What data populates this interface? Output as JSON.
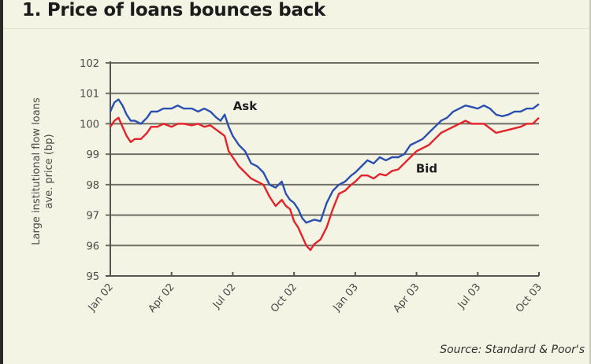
{
  "title": "1. Price of loans bounces back",
  "source": "Source: Standard & Poor's",
  "colors": {
    "background": "#f4f4e4",
    "ask": "#2a4fb0",
    "bid": "#e3222a",
    "grid": "#6e6e66",
    "axis": "#555555"
  },
  "chart_data": {
    "type": "line",
    "title": "1. Price of loans bounces back",
    "xlabel": "",
    "ylabel": "Large institutional flow loans ave. price (bp)",
    "ylabel_lines": [
      "Large institutional flow loans",
      "ave. price (bp)"
    ],
    "ylim": [
      95,
      102
    ],
    "yticks": [
      95,
      96,
      97,
      98,
      99,
      100,
      101,
      102
    ],
    "xticks": [
      "Jan 02",
      "Apr 02",
      "Jul 02",
      "Oct 02",
      "Jan 03",
      "Apr 03",
      "Jul 03",
      "Oct 03"
    ],
    "grid": true,
    "legend": "inline labels",
    "x_unit": "months since Jan 02",
    "series": [
      {
        "name": "Ask",
        "label_pos": [
          6.6,
          100.45
        ],
        "x": [
          0,
          0.2,
          0.4,
          0.6,
          0.8,
          1.0,
          1.2,
          1.5,
          1.8,
          2.0,
          2.3,
          2.6,
          3.0,
          3.3,
          3.6,
          4.0,
          4.3,
          4.6,
          4.9,
          5.2,
          5.4,
          5.6,
          5.8,
          6.0,
          6.3,
          6.6,
          6.9,
          7.2,
          7.5,
          7.8,
          8.1,
          8.4,
          8.6,
          8.8,
          9.0,
          9.2,
          9.4,
          9.6,
          9.8,
          10.0,
          10.3,
          10.6,
          10.9,
          11.2,
          11.5,
          11.8,
          12.0,
          12.3,
          12.6,
          12.9,
          13.2,
          13.5,
          13.8,
          14.1,
          14.4,
          14.7,
          15.0,
          15.3,
          15.6,
          15.9,
          16.2,
          16.5,
          16.8,
          17.1,
          17.4,
          17.7,
          18.0,
          18.3,
          18.6,
          18.9,
          19.2,
          19.5,
          19.8,
          20.1,
          20.4,
          20.7,
          21.0
        ],
        "values": [
          100.4,
          100.7,
          100.8,
          100.6,
          100.3,
          100.1,
          100.1,
          100.0,
          100.2,
          100.4,
          100.4,
          100.5,
          100.5,
          100.6,
          100.5,
          100.5,
          100.4,
          100.5,
          100.4,
          100.2,
          100.1,
          100.3,
          99.9,
          99.6,
          99.3,
          99.1,
          98.7,
          98.6,
          98.4,
          98.0,
          97.9,
          98.1,
          97.7,
          97.5,
          97.4,
          97.2,
          96.9,
          96.75,
          96.8,
          96.85,
          96.8,
          97.4,
          97.8,
          98.0,
          98.1,
          98.3,
          98.4,
          98.6,
          98.8,
          98.7,
          98.9,
          98.8,
          98.9,
          98.9,
          99.0,
          99.3,
          99.4,
          99.5,
          99.7,
          99.9,
          100.1,
          100.2,
          100.4,
          100.5,
          100.6,
          100.55,
          100.5,
          100.6,
          100.5,
          100.3,
          100.25,
          100.3,
          100.4,
          100.4,
          100.5,
          100.5,
          100.65
        ]
      },
      {
        "name": "Bid",
        "label_pos": [
          15.5,
          98.4
        ],
        "x": [
          0,
          0.2,
          0.4,
          0.6,
          0.8,
          1.0,
          1.2,
          1.5,
          1.8,
          2.0,
          2.3,
          2.6,
          3.0,
          3.3,
          3.6,
          4.0,
          4.3,
          4.6,
          4.9,
          5.2,
          5.4,
          5.6,
          5.8,
          6.0,
          6.3,
          6.6,
          6.9,
          7.2,
          7.5,
          7.8,
          8.1,
          8.4,
          8.6,
          8.8,
          9.0,
          9.2,
          9.4,
          9.6,
          9.8,
          10.0,
          10.3,
          10.6,
          10.9,
          11.2,
          11.5,
          11.8,
          12.0,
          12.3,
          12.6,
          12.9,
          13.2,
          13.5,
          13.8,
          14.1,
          14.4,
          14.7,
          15.0,
          15.3,
          15.6,
          15.9,
          16.2,
          16.5,
          16.8,
          17.1,
          17.4,
          17.7,
          18.0,
          18.3,
          18.6,
          18.9,
          19.2,
          19.5,
          19.8,
          20.1,
          20.4,
          20.7,
          21.0
        ],
        "values": [
          99.9,
          100.1,
          100.2,
          99.9,
          99.6,
          99.4,
          99.5,
          99.5,
          99.7,
          99.9,
          99.9,
          100.0,
          99.9,
          100.0,
          100.0,
          99.95,
          100.0,
          99.9,
          99.95,
          99.8,
          99.7,
          99.6,
          99.1,
          98.9,
          98.6,
          98.4,
          98.2,
          98.1,
          98.0,
          97.6,
          97.3,
          97.5,
          97.3,
          97.2,
          96.8,
          96.6,
          96.3,
          96.0,
          95.85,
          96.05,
          96.2,
          96.6,
          97.2,
          97.7,
          97.8,
          98.0,
          98.1,
          98.3,
          98.3,
          98.2,
          98.35,
          98.3,
          98.45,
          98.5,
          98.7,
          98.9,
          99.1,
          99.2,
          99.3,
          99.5,
          99.7,
          99.8,
          99.9,
          100.0,
          100.1,
          100.0,
          100.0,
          100.0,
          99.85,
          99.7,
          99.75,
          99.8,
          99.85,
          99.9,
          100.0,
          100.0,
          100.2
        ]
      }
    ]
  }
}
